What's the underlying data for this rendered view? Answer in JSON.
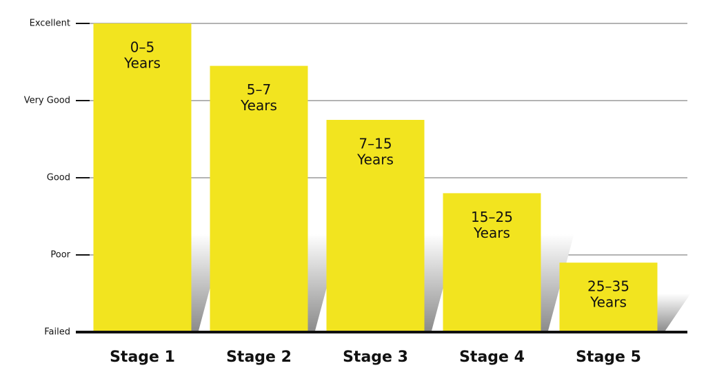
{
  "chart_data": {
    "type": "bar",
    "categories": [
      "Stage 1",
      "Stage 2",
      "Stage 3",
      "Stage 4",
      "Stage 5"
    ],
    "values": [
      4,
      3.45,
      2.75,
      1.8,
      0.9
    ],
    "bar_labels": [
      [
        "0–5",
        "Years"
      ],
      [
        "5–7",
        "Years"
      ],
      [
        "7–15",
        "Years"
      ],
      [
        "15–25",
        "Years"
      ],
      [
        "25–35",
        "Years"
      ]
    ],
    "color": "#f2e41f",
    "ylim": [
      0,
      4
    ],
    "yticks": [
      {
        "value": 0,
        "label": "Failed"
      },
      {
        "value": 1,
        "label": "Poor"
      },
      {
        "value": 2,
        "label": "Good"
      },
      {
        "value": 3,
        "label": "Very Good"
      },
      {
        "value": 4,
        "label": "Excellent"
      }
    ],
    "grid": true
  }
}
